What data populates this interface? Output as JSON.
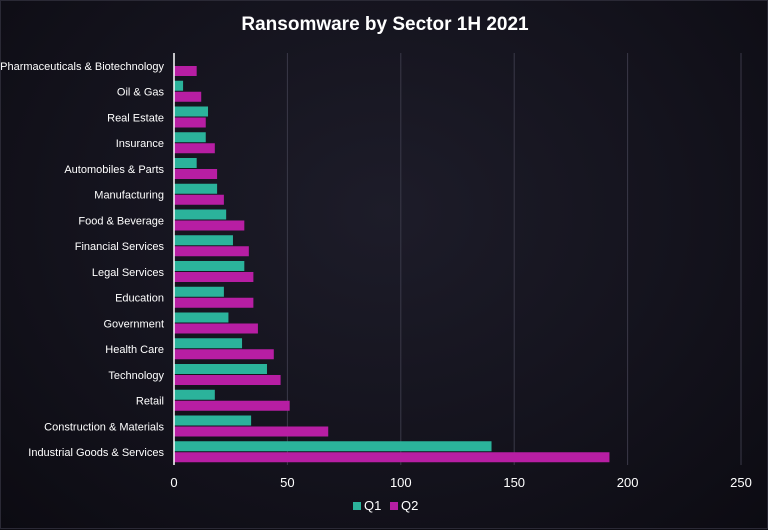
{
  "chart_data": {
    "type": "bar",
    "orientation": "horizontal",
    "title": "Ransomware by Sector 1H 2021",
    "xlabel": "",
    "ylabel": "",
    "xlim": [
      0,
      250
    ],
    "x_ticks": [
      0,
      50,
      100,
      150,
      200,
      250
    ],
    "grid": "vertical",
    "legend_position": "bottom",
    "categories": [
      "Pharmaceuticals & Biotechnology",
      "Oil & Gas",
      "Real Estate",
      "Insurance",
      "Automobiles & Parts",
      "Manufacturing",
      "Food & Beverage",
      "Financial Services",
      "Legal Services",
      "Education",
      "Government",
      "Health Care",
      "Technology",
      "Retail",
      "Construction & Materials",
      "Industrial Goods & Services"
    ],
    "series": [
      {
        "name": "Q1",
        "color": "#2bb39b",
        "values": [
          0,
          4,
          15,
          14,
          10,
          19,
          23,
          26,
          31,
          22,
          24,
          30,
          41,
          18,
          34,
          140
        ]
      },
      {
        "name": "Q2",
        "color": "#b71ea3",
        "values": [
          10,
          12,
          14,
          18,
          19,
          22,
          31,
          33,
          35,
          35,
          37,
          44,
          47,
          51,
          68,
          192
        ]
      }
    ]
  }
}
